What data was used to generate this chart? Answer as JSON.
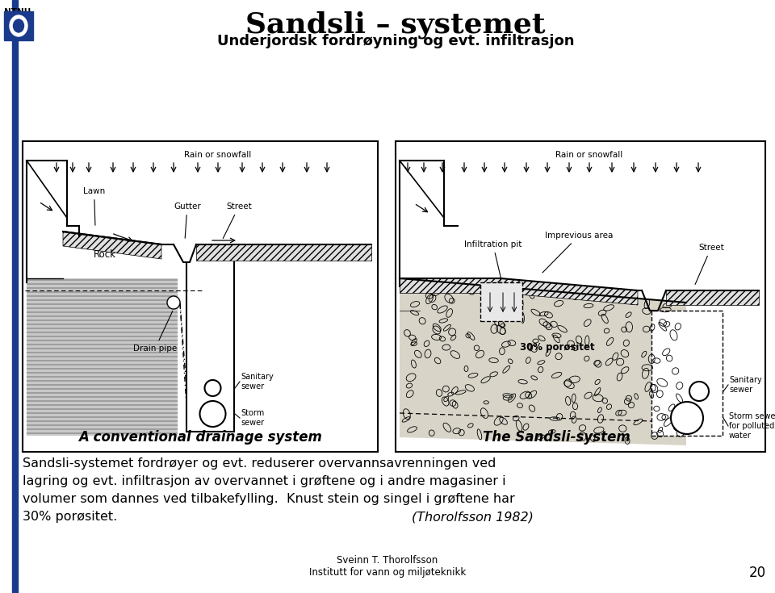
{
  "title": "Sandsli – systemet",
  "subtitle": "Underjordsk fordrøyning og evt. infiltrasjon",
  "left_diagram_title": "A conventional drainage system",
  "right_diagram_title": "The Sandsli-system",
  "body_text_line1": "Sandsli-systemet fordrøyer og evt. reduserer overvannsavrenningen ved",
  "body_text_line2": "lagring og evt. infiltrasjon av overvannet i grøftene og i andre magasiner i",
  "body_text_line3": "volumer som dannes ved tilbakefylling.  Knust stein og singel i grøftene har",
  "body_text_line4": "30% porøsitet.",
  "body_text_ref": "(Thorolfsson 1982)",
  "footer_line1": "Sveinn T. Thorolfsson",
  "footer_line2": "Institutt for vann og miljøteknikk",
  "page_number": "20",
  "bg_color": "#ffffff",
  "blue_bar_color": "#1a3a8c"
}
